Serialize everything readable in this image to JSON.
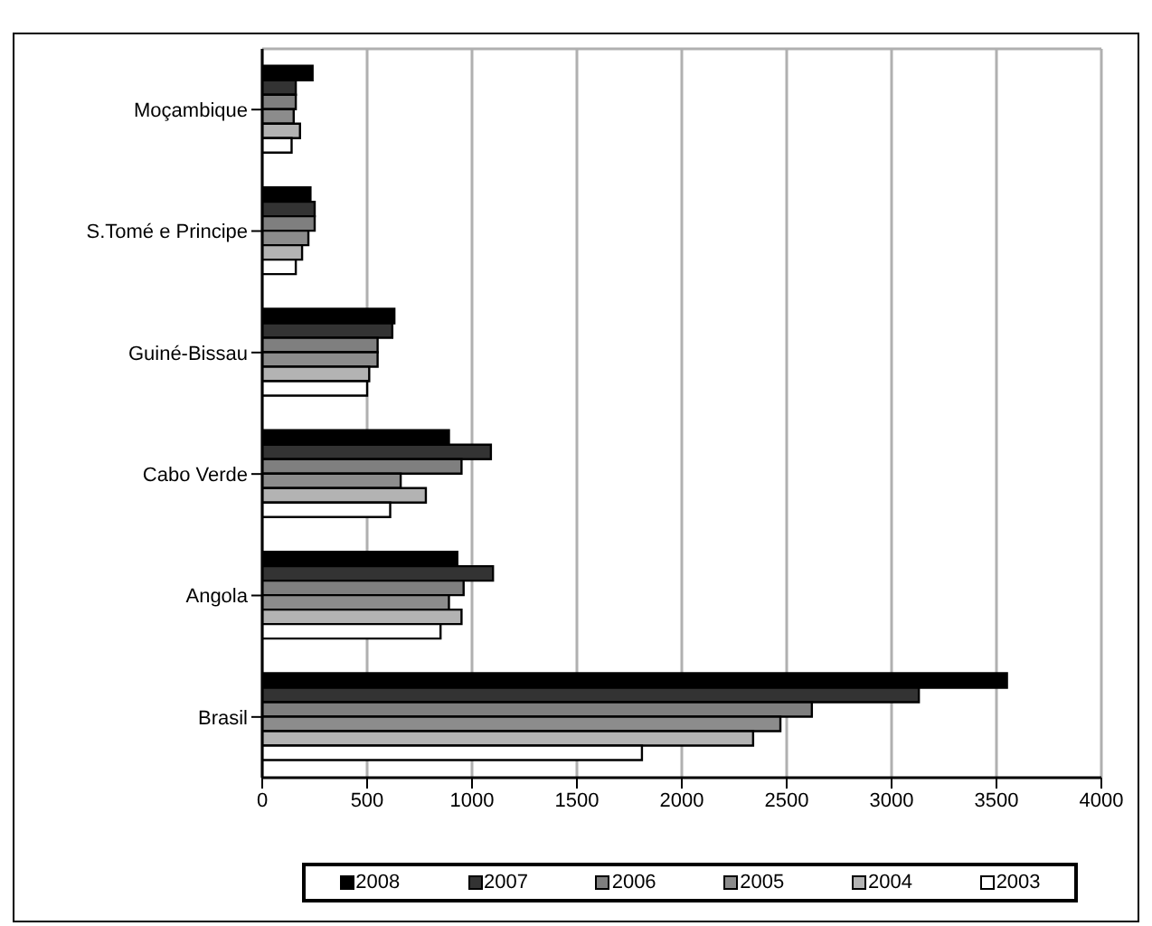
{
  "chart_data": {
    "type": "bar",
    "orientation": "horizontal",
    "categories": [
      "Moçambique",
      "S.Tomé e Principe",
      "Guiné-Bissau",
      "Cabo Verde",
      "Angola",
      "Brasil"
    ],
    "series": [
      {
        "name": "2008",
        "color": "#000000",
        "values": [
          240,
          230,
          630,
          890,
          930,
          3550
        ]
      },
      {
        "name": "2007",
        "color": "#333333",
        "values": [
          160,
          250,
          620,
          1090,
          1100,
          3130
        ]
      },
      {
        "name": "2006",
        "color": "#7f7f7f",
        "values": [
          160,
          250,
          550,
          950,
          960,
          2620
        ]
      },
      {
        "name": "2005",
        "color": "#8c8c8c",
        "values": [
          150,
          220,
          550,
          660,
          890,
          2470
        ]
      },
      {
        "name": "2004",
        "color": "#b3b3b3",
        "values": [
          180,
          190,
          510,
          780,
          950,
          2340
        ]
      },
      {
        "name": "2003",
        "color": "#ffffff",
        "values": [
          140,
          160,
          500,
          610,
          850,
          1810
        ]
      }
    ],
    "xlim": [
      0,
      4000
    ],
    "xticks": [
      0,
      500,
      1000,
      1500,
      2000,
      2500,
      3000,
      3500,
      4000
    ],
    "grid": "x",
    "legend": "bottom"
  }
}
